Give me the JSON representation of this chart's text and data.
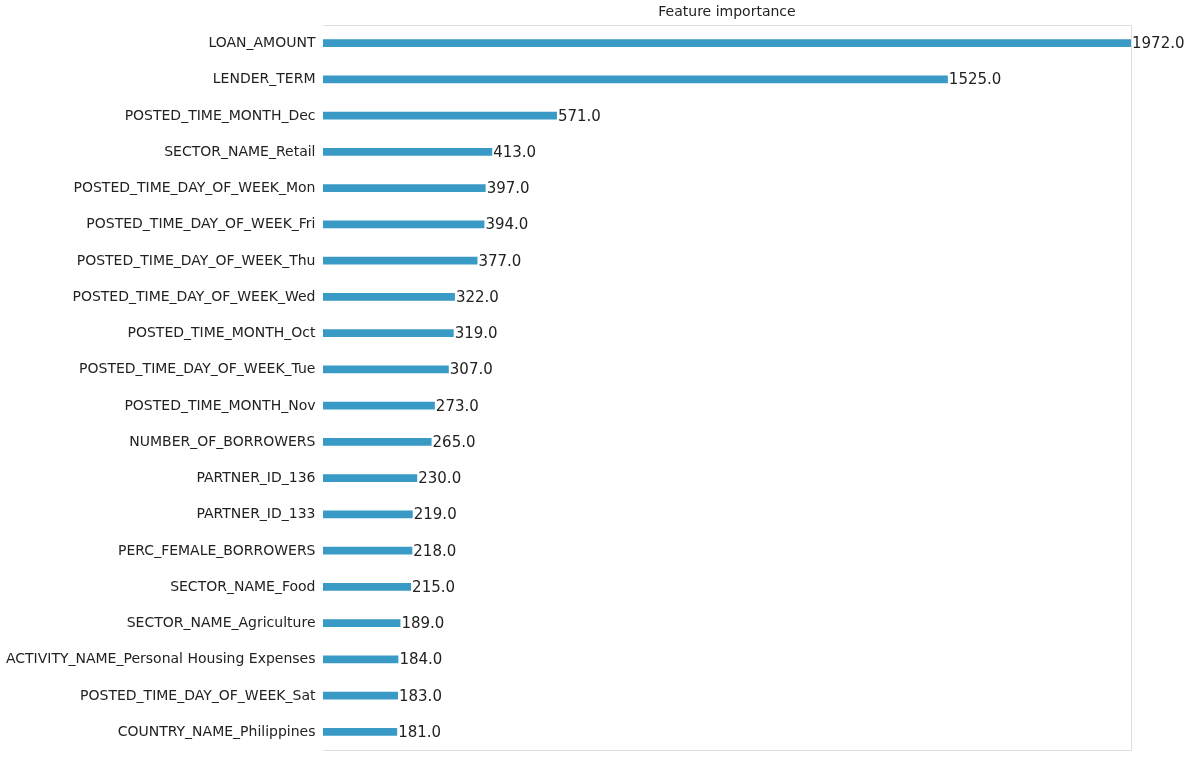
{
  "chart_data": {
    "type": "bar",
    "orientation": "horizontal",
    "title": "Feature importance",
    "categories": [
      "LOAN_AMOUNT",
      "LENDER_TERM",
      "POSTED_TIME_MONTH_Dec",
      "SECTOR_NAME_Retail",
      "POSTED_TIME_DAY_OF_WEEK_Mon",
      "POSTED_TIME_DAY_OF_WEEK_Fri",
      "POSTED_TIME_DAY_OF_WEEK_Thu",
      "POSTED_TIME_DAY_OF_WEEK_Wed",
      "POSTED_TIME_MONTH_Oct",
      "POSTED_TIME_DAY_OF_WEEK_Tue",
      "POSTED_TIME_MONTH_Nov",
      "NUMBER_OF_BORROWERS",
      "PARTNER_ID_136",
      "PARTNER_ID_133",
      "PERC_FEMALE_BORROWERS",
      "SECTOR_NAME_Food",
      "SECTOR_NAME_Agriculture",
      "ACTIVITY_NAME_Personal Housing Expenses",
      "POSTED_TIME_DAY_OF_WEEK_Sat",
      "COUNTRY_NAME_Philippines"
    ],
    "series": [
      {
        "color": "#3a9ac6",
        "values": [
          1972,
          1525,
          571,
          413,
          397,
          394,
          377,
          322,
          319,
          307,
          273,
          265,
          230,
          219,
          218,
          215,
          189,
          184,
          183,
          181
        ],
        "value_labels": [
          "1972.0",
          "1525.0",
          "571.0",
          "413.0",
          "397.0",
          "394.0",
          "377.0",
          "322.0",
          "319.0",
          "307.0",
          "273.0",
          "265.0",
          "230.0",
          "219.0",
          "218.0",
          "215.0",
          "189.0",
          "184.0",
          "183.0",
          "181.0"
        ]
      }
    ],
    "grid": "x",
    "tick_labels": "y"
  }
}
